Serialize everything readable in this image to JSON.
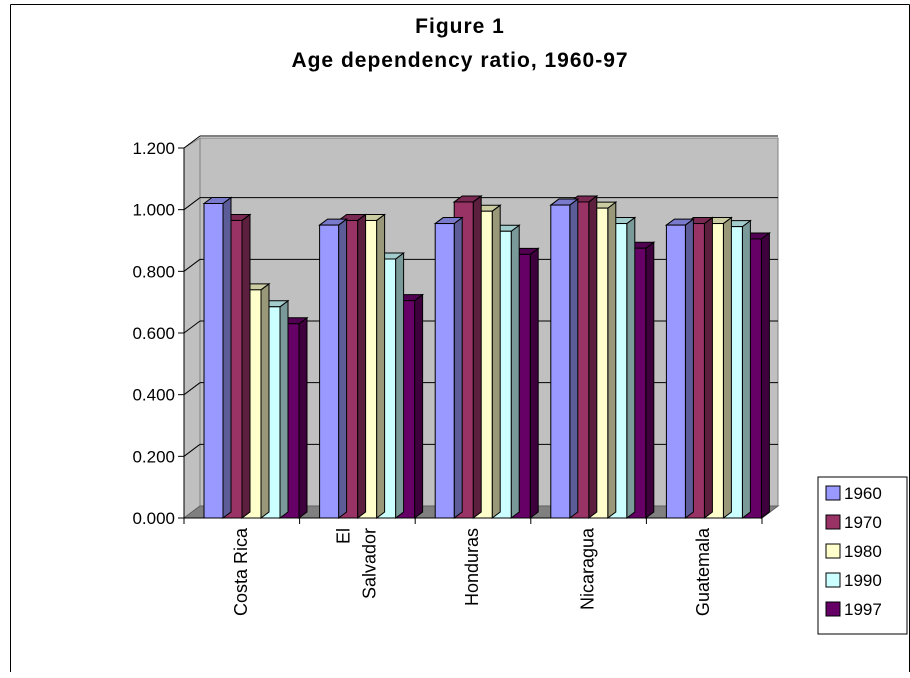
{
  "chart_data": {
    "type": "bar",
    "title": "Figure 1",
    "subtitle": "Age dependency ratio, 1960-97",
    "categories": [
      "Costa Rica",
      "El Salvador",
      "Honduras",
      "Nicaragua",
      "Guatemala"
    ],
    "category_lines": [
      [
        "Costa Rica"
      ],
      [
        "El",
        "Salvador"
      ],
      [
        "Honduras"
      ],
      [
        "Nicaragua"
      ],
      [
        "Guatemala"
      ]
    ],
    "series": [
      {
        "name": "1960",
        "values": [
          1.02,
          0.95,
          0.955,
          1.015,
          0.95
        ],
        "color": "#9999FF"
      },
      {
        "name": "1970",
        "values": [
          0.965,
          0.965,
          1.025,
          1.025,
          0.955
        ],
        "color": "#993366"
      },
      {
        "name": "1980",
        "values": [
          0.74,
          0.965,
          0.995,
          1.005,
          0.955
        ],
        "color": "#FFFFCC"
      },
      {
        "name": "1990",
        "values": [
          0.685,
          0.84,
          0.93,
          0.955,
          0.945
        ],
        "color": "#CCFFFF"
      },
      {
        "name": "1997",
        "values": [
          0.63,
          0.705,
          0.855,
          0.875,
          0.905
        ],
        "color": "#660066"
      }
    ],
    "y_ticks": [
      "0.000",
      "0.200",
      "0.400",
      "0.600",
      "0.800",
      "1.000",
      "1.200"
    ],
    "ylim": [
      0,
      1.2
    ],
    "xlabel": "",
    "ylabel": "",
    "grid": true,
    "legend_position": "bottom-right",
    "plot_background": "#C0C0C0"
  }
}
